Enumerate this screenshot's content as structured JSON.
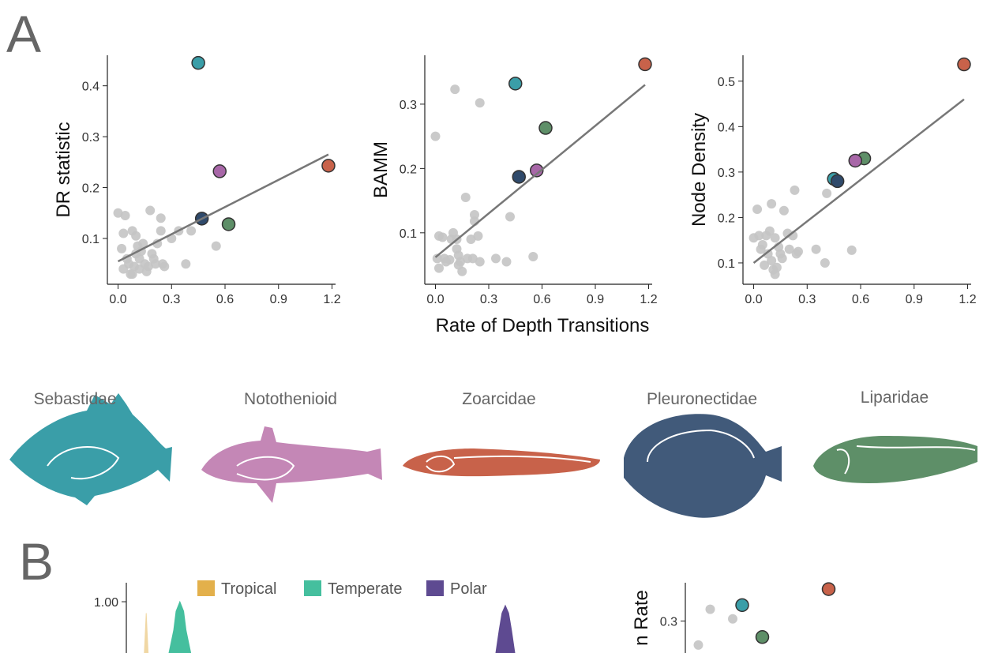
{
  "panels": [
    "A",
    "B"
  ],
  "fish": [
    "Sebastidae",
    "Notothenioid",
    "Zoarcidae",
    "Pleuronectidae",
    "Liparidae"
  ],
  "chart_data": [
    {
      "type": "scatter",
      "ylabel": "DR statistic",
      "xlim": [
        -0.06,
        1.22
      ],
      "ylim": [
        0.01,
        0.46
      ],
      "xticks": [
        {
          "value": 0,
          "label": "0.0"
        },
        0.3,
        0.6,
        0.9,
        1.2
      ],
      "yticks": [
        0.1,
        0.2,
        0.3,
        0.4
      ],
      "series": [
        {
          "color": "#c4c4c4",
          "x": [
            0.0,
            0.03,
            0.04,
            0.02,
            0.05,
            0.06,
            0.08,
            0.1,
            0.1,
            0.12,
            0.12,
            0.14,
            0.15,
            0.16,
            0.17,
            0.18,
            0.2,
            0.22,
            0.24,
            0.24,
            0.25,
            0.26,
            0.3,
            0.34,
            0.38,
            0.41,
            0.55,
            0.07,
            0.09,
            0.11,
            0.13,
            0.19,
            0.21,
            0.03,
            0.08
          ],
          "values": [
            0.15,
            0.11,
            0.145,
            0.08,
            0.06,
            0.05,
            0.115,
            0.105,
            0.07,
            0.06,
            0.04,
            0.09,
            0.05,
            0.035,
            0.045,
            0.155,
            0.06,
            0.09,
            0.115,
            0.14,
            0.05,
            0.045,
            0.1,
            0.115,
            0.05,
            0.115,
            0.085,
            0.03,
            0.045,
            0.085,
            0.075,
            0.07,
            0.05,
            0.04,
            0.03
          ]
        },
        {
          "color": "#3a9ea8",
          "x": [
            0.45
          ],
          "values": [
            0.445
          ]
        },
        {
          "color": "#c8624a",
          "x": [
            1.18
          ],
          "values": [
            0.243
          ]
        },
        {
          "color": "#a867a8",
          "x": [
            0.57
          ],
          "values": [
            0.232
          ]
        },
        {
          "color": "#5e8f68",
          "x": [
            0.62
          ],
          "values": [
            0.128
          ]
        },
        {
          "color": "#2f4a6b",
          "x": [
            0.47
          ],
          "values": [
            0.139
          ]
        },
        {
          "color": "#777777",
          "style": "line",
          "x": [
            0,
            1.18
          ],
          "values": [
            0.055,
            0.265
          ]
        }
      ]
    },
    {
      "type": "scatter",
      "ylabel": "BAMM",
      "xlabel": "Rate of Depth Transitions",
      "xlim": [
        -0.06,
        1.22
      ],
      "ylim": [
        0.02,
        0.376
      ],
      "xticks": [
        {
          "value": 0,
          "label": "0.0"
        },
        0.3,
        0.6,
        0.9,
        1.2
      ],
      "yticks": [
        0.1,
        0.2,
        0.3
      ],
      "series": [
        {
          "color": "#c4c4c4",
          "x": [
            0.0,
            0.11,
            0.25,
            0.02,
            0.04,
            0.01,
            0.02,
            0.05,
            0.08,
            0.09,
            0.1,
            0.12,
            0.13,
            0.14,
            0.15,
            0.17,
            0.2,
            0.21,
            0.22,
            0.22,
            0.24,
            0.25,
            0.34,
            0.4,
            0.42,
            0.55,
            0.12,
            0.06,
            0.13,
            0.18
          ],
          "values": [
            0.25,
            0.323,
            0.302,
            0.095,
            0.093,
            0.06,
            0.045,
            0.06,
            0.058,
            0.09,
            0.1,
            0.075,
            0.065,
            0.055,
            0.04,
            0.155,
            0.09,
            0.06,
            0.128,
            0.118,
            0.095,
            0.055,
            0.06,
            0.055,
            0.125,
            0.063,
            0.09,
            0.055,
            0.05,
            0.06
          ]
        },
        {
          "color": "#c8624a",
          "x": [
            1.18
          ],
          "values": [
            0.362
          ]
        },
        {
          "color": "#3a9ea8",
          "x": [
            0.45
          ],
          "values": [
            0.332
          ]
        },
        {
          "color": "#5e8f68",
          "x": [
            0.62
          ],
          "values": [
            0.263
          ]
        },
        {
          "color": "#a867a8",
          "x": [
            0.57
          ],
          "values": [
            0.197
          ]
        },
        {
          "color": "#2f4a6b",
          "x": [
            0.47
          ],
          "values": [
            0.187
          ]
        },
        {
          "color": "#777777",
          "style": "line",
          "x": [
            0,
            1.18
          ],
          "values": [
            0.062,
            0.33
          ]
        }
      ]
    },
    {
      "type": "scatter",
      "ylabel": "Node Density",
      "xlim": [
        -0.06,
        1.22
      ],
      "ylim": [
        0.053,
        0.557
      ],
      "xticks": [
        {
          "value": 0,
          "label": "0.0"
        },
        0.3,
        0.6,
        0.9,
        1.2
      ],
      "yticks": [
        0.1,
        0.2,
        0.3,
        0.4,
        0.5
      ],
      "series": [
        {
          "color": "#c4c4c4",
          "x": [
            0.02,
            0.0,
            0.03,
            0.04,
            0.05,
            0.06,
            0.08,
            0.09,
            0.1,
            0.1,
            0.12,
            0.12,
            0.13,
            0.14,
            0.15,
            0.17,
            0.19,
            0.2,
            0.22,
            0.23,
            0.24,
            0.25,
            0.35,
            0.4,
            0.41,
            0.55,
            0.07,
            0.11,
            0.16
          ],
          "values": [
            0.218,
            0.155,
            0.16,
            0.13,
            0.14,
            0.095,
            0.12,
            0.17,
            0.105,
            0.23,
            0.075,
            0.155,
            0.09,
            0.135,
            0.12,
            0.215,
            0.165,
            0.13,
            0.16,
            0.26,
            0.12,
            0.125,
            0.13,
            0.1,
            0.253,
            0.128,
            0.16,
            0.085,
            0.11
          ]
        },
        {
          "color": "#c8624a",
          "x": [
            1.18
          ],
          "values": [
            0.537
          ]
        },
        {
          "color": "#5e8f68",
          "x": [
            0.62
          ],
          "values": [
            0.33
          ]
        },
        {
          "color": "#a867a8",
          "x": [
            0.57
          ],
          "values": [
            0.325
          ]
        },
        {
          "color": "#3a9ea8",
          "x": [
            0.45
          ],
          "values": [
            0.285
          ]
        },
        {
          "color": "#2f4a6b",
          "x": [
            0.47
          ],
          "values": [
            0.28
          ]
        },
        {
          "color": "#777777",
          "style": "line",
          "x": [
            0,
            1.18
          ],
          "values": [
            0.1,
            0.46
          ]
        }
      ]
    },
    {
      "type": "density",
      "xlim": [
        0,
        1
      ],
      "ylim": [
        0.73,
        1.1
      ],
      "yticks": [
        {
          "value": 1,
          "label": "1.00"
        }
      ],
      "series": [
        {
          "name": "Tropical",
          "color": "#e3b04b",
          "x": [
            0.038,
            0.042,
            0.046
          ],
          "values": [
            0.73,
            0.94,
            0.73
          ]
        },
        {
          "name": "Temperate",
          "color": "#45bf9e",
          "x": [
            0.09,
            0.1,
            0.105,
            0.113,
            0.121,
            0.126,
            0.136
          ],
          "values": [
            0.73,
            0.85,
            0.95,
            1.0,
            0.95,
            0.85,
            0.73
          ]
        },
        {
          "name": "Polar",
          "color": "#5e4a91",
          "x": [
            0.78,
            0.787,
            0.793,
            0.8,
            0.807,
            0.813,
            0.82
          ],
          "values": [
            0.73,
            0.85,
            0.94,
            0.98,
            0.94,
            0.85,
            0.73
          ]
        }
      ]
    },
    {
      "type": "scatter",
      "ylabel": "n Rate",
      "xlim": [
        -0.03,
        1.25
      ],
      "ylim": [
        0.2,
        0.42
      ],
      "yticks": [
        0.3
      ],
      "series": [
        {
          "color": "#c4c4c4",
          "x": [
            0.18,
            0.37,
            0.08
          ],
          "values": [
            0.337,
            0.307,
            0.225
          ]
        },
        {
          "color": "#3a9ea8",
          "x": [
            0.45
          ],
          "values": [
            0.35
          ]
        },
        {
          "color": "#c8624a",
          "x": [
            1.18
          ],
          "values": [
            0.4
          ]
        },
        {
          "color": "#5e8f68",
          "x": [
            0.62
          ],
          "values": [
            0.25
          ]
        }
      ]
    }
  ]
}
